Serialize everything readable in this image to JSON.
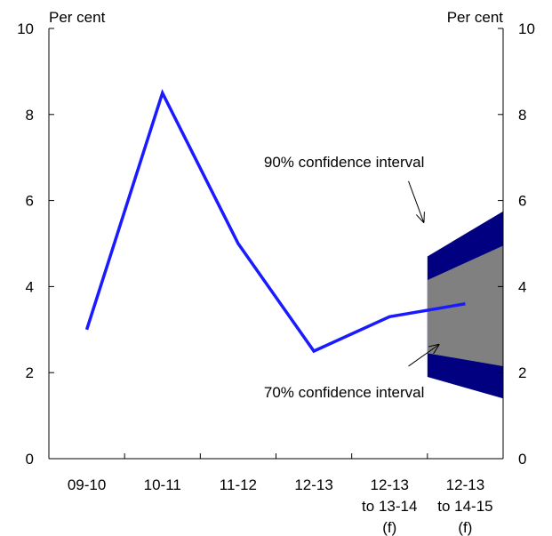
{
  "chart_data": {
    "type": "line",
    "left_unit_label": "Per cent",
    "right_unit_label": "Per cent",
    "ylim": [
      0,
      10
    ],
    "yticks": [
      0,
      2,
      4,
      6,
      8,
      10
    ],
    "categories": [
      {
        "lines": [
          "09-10"
        ]
      },
      {
        "lines": [
          "10-11"
        ]
      },
      {
        "lines": [
          "11-12"
        ]
      },
      {
        "lines": [
          "12-13"
        ]
      },
      {
        "lines": [
          "12-13",
          "to 13-14",
          "(f)"
        ]
      },
      {
        "lines": [
          "12-13",
          "to 14-15",
          "(f)"
        ]
      }
    ],
    "series": [
      {
        "values": [
          3.0,
          8.5,
          5.0,
          2.5,
          3.3,
          3.6
        ],
        "color": "#1a1aff"
      }
    ],
    "confidence_bands": {
      "x_start": 4.5,
      "x_end": 5.5,
      "outer": {
        "lower": [
          1.9,
          1.4
        ],
        "upper": [
          4.7,
          5.75
        ],
        "color": "#000080"
      },
      "inner": {
        "lower": [
          2.45,
          2.15
        ],
        "upper": [
          4.15,
          4.95
        ],
        "color": "#808080"
      }
    },
    "annotations": {
      "ci90": {
        "text": "90% confidence interval",
        "x": 3.4,
        "y": 6.9,
        "arrow_from": [
          4.25,
          6.45
        ],
        "arrow_to": [
          4.45,
          5.5
        ]
      },
      "ci70": {
        "text": "70% confidence interval",
        "x": 3.4,
        "y": 1.55,
        "arrow_from": [
          4.25,
          2.15
        ],
        "arrow_to": [
          4.65,
          2.65
        ]
      }
    },
    "grid": false,
    "legend": "none"
  }
}
